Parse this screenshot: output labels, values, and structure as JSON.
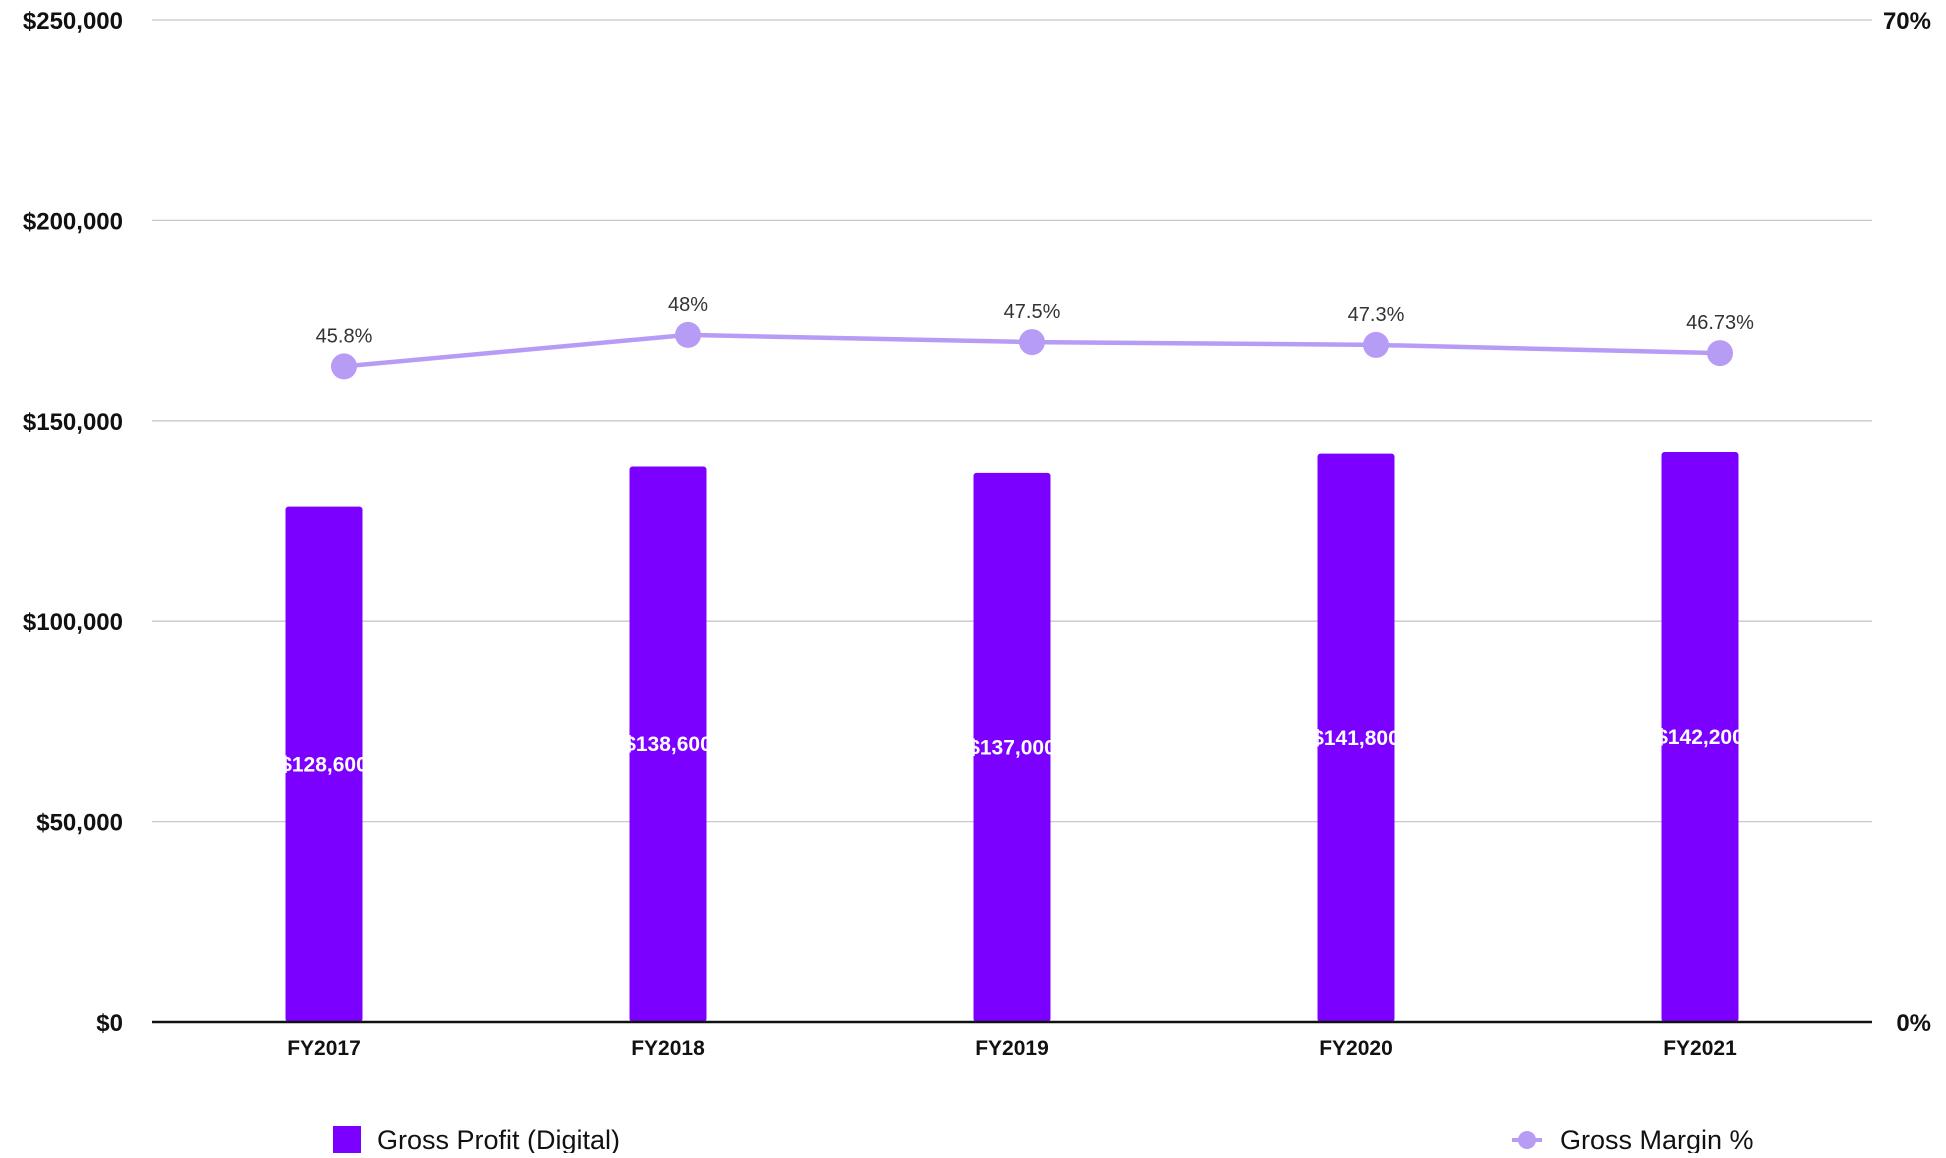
{
  "chart_data": {
    "type": "bar",
    "categories": [
      "FY2017",
      "FY2018",
      "FY2019",
      "FY2020",
      "FY2021"
    ],
    "series": [
      {
        "name": "Gross Profit (Digital)",
        "type": "bar",
        "axis": "left",
        "values": [
          128600,
          138600,
          137000,
          141800,
          142200
        ],
        "labels": [
          "$128,600",
          "$138,600",
          "$137,000",
          "$141,800",
          "$142,200"
        ],
        "color": "#7B00FF"
      },
      {
        "name": "Gross Margin %",
        "type": "line",
        "axis": "right",
        "values": [
          45.8,
          48,
          47.5,
          47.3,
          46.73
        ],
        "labels": [
          "45.8%",
          "48%",
          "47.5%",
          "47.3%",
          "46.73%"
        ],
        "color": "#B79CF5"
      }
    ],
    "y_left": {
      "ylim": [
        0,
        250000
      ],
      "ticks": [
        0,
        50000,
        100000,
        150000,
        200000,
        250000
      ],
      "tick_labels": [
        "$0",
        "$50,000",
        "$100,000",
        "$150,000",
        "$200,000",
        "$250,000"
      ]
    },
    "y_right": {
      "ylim": [
        0,
        70
      ],
      "ticks": [
        0,
        70
      ],
      "tick_labels": [
        "0%",
        "70%"
      ]
    },
    "grid": true,
    "legend": "bottom"
  }
}
